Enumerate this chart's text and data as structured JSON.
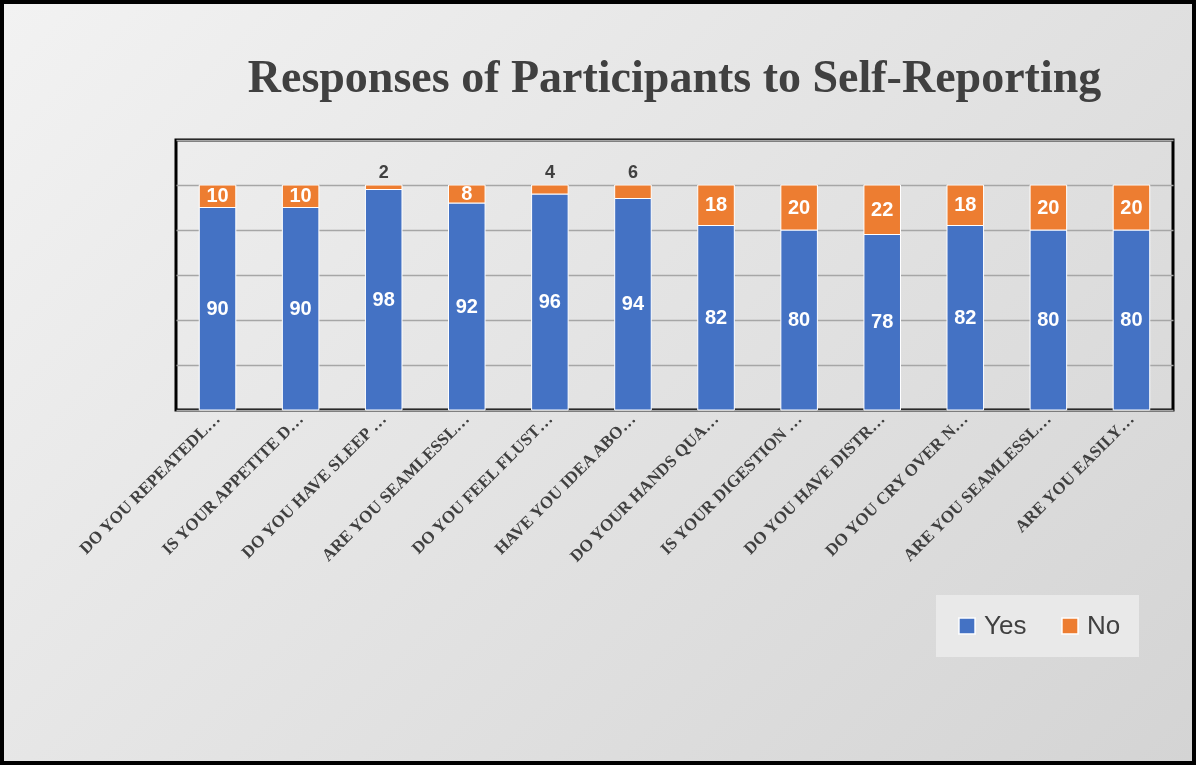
{
  "chart_data": {
    "type": "bar",
    "title": "Responses of Participants to Self-Reporting",
    "categories": [
      "DO YOU REPEATEDL…",
      "IS YOUR APPETITE D…",
      "DO YOU HAVE SLEEP …",
      "ARE YOU SEAMLESSL…",
      "DO YOU FEEL FLUST…",
      "HAVE YOU IDEA ABO…",
      "DO YOUR HANDS QUA…",
      "IS YOUR DIGESTION …",
      "DO YOU HAVE DISTR…",
      "DO YOU CRY OVER N…",
      "ARE YOU SEAMLESSL…",
      "ARE YOU EASILY…"
    ],
    "series": [
      {
        "name": "Yes",
        "color": "#4472c4",
        "values": [
          90,
          90,
          98,
          92,
          96,
          94,
          82,
          80,
          78,
          82,
          80,
          80
        ]
      },
      {
        "name": "No",
        "color": "#ed7d31",
        "values": [
          10,
          10,
          2,
          8,
          4,
          6,
          18,
          20,
          22,
          18,
          20,
          20
        ]
      }
    ],
    "stacked": true,
    "ylim": [
      0,
      120
    ],
    "yticks": [
      {
        "value": 0,
        "label": null
      },
      {
        "value": 20,
        "label": null
      },
      {
        "value": 40,
        "label": null
      },
      {
        "value": 60,
        "label": null
      },
      {
        "value": 80,
        "label": null
      },
      {
        "value": 100,
        "label": null
      },
      {
        "value": 120,
        "label": null
      }
    ],
    "grid": "y",
    "tick_labels": "x",
    "data_labels": true,
    "legend": "bottom right"
  }
}
